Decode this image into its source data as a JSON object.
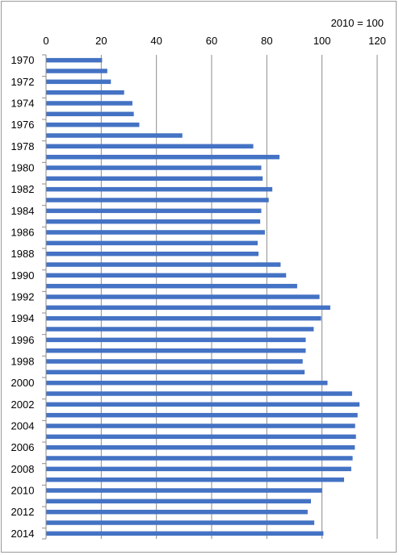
{
  "chart_data": {
    "type": "bar",
    "orientation": "horizontal",
    "note": "2010 = 100",
    "title": "",
    "xlabel": "",
    "ylabel": "",
    "xlim": [
      0,
      120
    ],
    "x_ticks": [
      0,
      20,
      40,
      60,
      80,
      100,
      120
    ],
    "x_tick_labels": [
      "0",
      "20",
      "40",
      "60",
      "80",
      "100",
      "120"
    ],
    "x_axis_position": "top",
    "grid": true,
    "legend": "none",
    "bar_color": "#4472c4",
    "categories": [
      "1970",
      "1971",
      "1972",
      "1973",
      "1974",
      "1975",
      "1976",
      "1977",
      "1978",
      "1979",
      "1980",
      "1981",
      "1982",
      "1983",
      "1984",
      "1985",
      "1986",
      "1987",
      "1988",
      "1989",
      "1990",
      "1991",
      "1992",
      "1993",
      "1994",
      "1995",
      "1996",
      "1997",
      "1998",
      "1999",
      "2000",
      "2001",
      "2002",
      "2003",
      "2004",
      "2005",
      "2006",
      "2007",
      "2008",
      "2009",
      "2010",
      "2011",
      "2012",
      "2013",
      "2014"
    ],
    "category_labels": [
      "1970",
      "",
      "1972",
      "",
      "1974",
      "",
      "1976",
      "",
      "1978",
      "",
      "1980",
      "",
      "1982",
      "",
      "1984",
      "",
      "1986",
      "",
      "1988",
      "",
      "1990",
      "",
      "1992",
      "",
      "1994",
      "",
      "1996",
      "",
      "1998",
      "",
      "2000",
      "",
      "2002",
      "",
      "2004",
      "",
      "2006",
      "",
      "2008",
      "",
      "2010",
      "",
      "2012",
      "",
      "2014"
    ],
    "values": [
      20.3,
      22.2,
      23.5,
      28.3,
      31.3,
      31.8,
      33.8,
      49.4,
      75.1,
      84.6,
      78.0,
      78.5,
      82.0,
      80.7,
      78.0,
      77.6,
      79.3,
      76.7,
      77.0,
      85.0,
      87.0,
      91.0,
      99.1,
      103.0,
      99.7,
      97.0,
      94.1,
      94.1,
      93.0,
      93.7,
      102.0,
      110.9,
      113.6,
      112.9,
      112.0,
      112.3,
      111.9,
      111.1,
      110.6,
      108.0,
      100.0,
      96.0,
      94.8,
      97.2,
      100.5
    ]
  }
}
